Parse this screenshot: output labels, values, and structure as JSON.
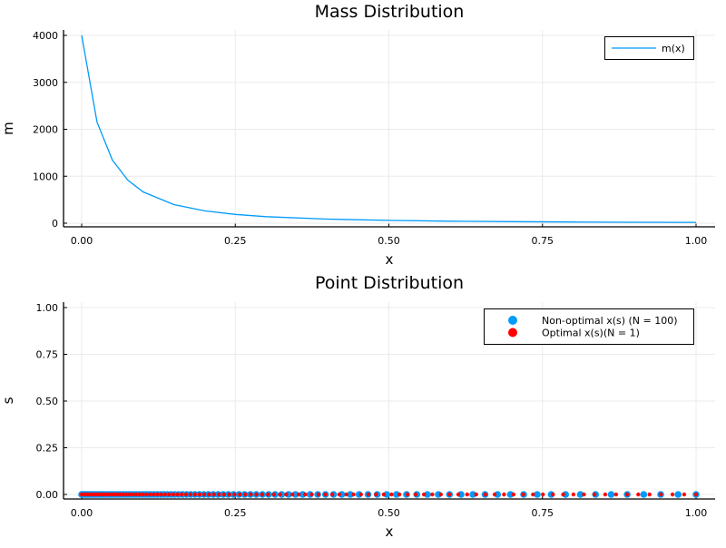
{
  "colors": {
    "series_blue": "#009AFA",
    "series_red": "#FF0000",
    "grid": "#EBEBEB",
    "axis": "#000000"
  },
  "chart_data": [
    {
      "type": "line",
      "title": "Mass Distribution",
      "xlabel": "x",
      "ylabel": "m",
      "xlim": [
        0,
        1
      ],
      "ylim": [
        0,
        4000
      ],
      "xticks": [
        "0.00",
        "0.25",
        "0.50",
        "0.75",
        "1.00"
      ],
      "yticks": [
        "0",
        "1000",
        "2000",
        "3000",
        "4000"
      ],
      "grid": true,
      "legend_position": "top-right",
      "series": [
        {
          "name": "m(x)",
          "color": "#009AFA",
          "x": [
            0,
            0.025,
            0.05,
            0.075,
            0.1,
            0.15,
            0.2,
            0.25,
            0.3,
            0.4,
            0.5,
            0.6,
            0.7,
            0.8,
            0.9,
            1.0
          ],
          "y": [
            4000,
            2155,
            1344,
            918,
            667,
            397,
            263,
            187,
            140,
            87,
            59,
            43,
            32,
            25,
            20,
            17
          ]
        }
      ]
    },
    {
      "type": "scatter",
      "title": "Point Distribution",
      "xlabel": "x",
      "ylabel": "s",
      "xlim": [
        0,
        1
      ],
      "ylim": [
        0,
        1
      ],
      "xticks": [
        "0.00",
        "0.25",
        "0.50",
        "0.75",
        "1.00"
      ],
      "yticks": [
        "0.00",
        "0.25",
        "0.50",
        "0.75",
        "1.00"
      ],
      "grid": true,
      "legend_position": "top-right",
      "series": [
        {
          "name": "Non-optimal x(s) (N = 100)",
          "color": "#009AFA",
          "count": 100,
          "y_value": 0
        },
        {
          "name": "Optimal x(s)(N = 1)",
          "color": "#FF0000",
          "count": 100,
          "y_value": 0
        }
      ]
    }
  ]
}
